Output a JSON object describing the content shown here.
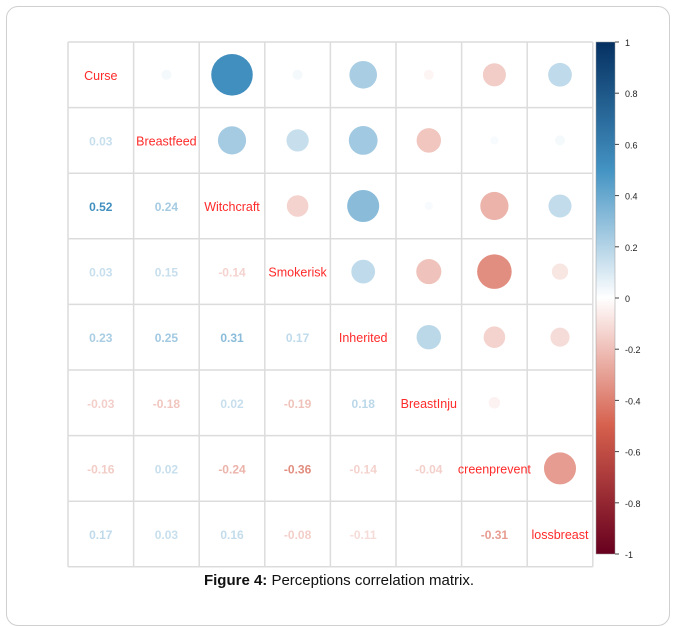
{
  "figure": {
    "caption_label": "Figure 4:",
    "caption_text": " Perceptions correlation matrix."
  },
  "chart_data": {
    "type": "heatmap",
    "variables": [
      "Curse",
      "Breastfeed",
      "Witchcraft",
      "Smokerisk",
      "Inherited",
      "BreastInju",
      "creenprevent",
      "lossbreast"
    ],
    "matrix": [
      [
        1.0,
        0.03,
        0.52,
        0.03,
        0.23,
        -0.03,
        -0.16,
        0.17
      ],
      [
        0.03,
        1.0,
        0.24,
        0.15,
        0.25,
        -0.18,
        0.02,
        0.03
      ],
      [
        0.52,
        0.24,
        1.0,
        -0.14,
        0.31,
        0.02,
        -0.24,
        0.16
      ],
      [
        0.03,
        0.15,
        -0.14,
        1.0,
        0.17,
        -0.19,
        -0.36,
        -0.08
      ],
      [
        0.23,
        0.25,
        0.31,
        0.17,
        1.0,
        0.18,
        -0.14,
        -0.11
      ],
      [
        -0.03,
        -0.18,
        0.02,
        -0.19,
        0.18,
        1.0,
        -0.04,
        0.0
      ],
      [
        -0.16,
        0.02,
        -0.24,
        -0.36,
        -0.14,
        -0.04,
        1.0,
        -0.31
      ],
      [
        0.17,
        0.03,
        0.16,
        -0.08,
        -0.11,
        0.0,
        -0.31,
        1.0
      ]
    ],
    "lower_labels": [
      [
        null,
        null,
        null,
        null,
        null,
        null,
        null
      ],
      [
        "0.03",
        null,
        null,
        null,
        null,
        null,
        null
      ],
      [
        "0.52",
        "0.24",
        null,
        null,
        null,
        null,
        null
      ],
      [
        "0.03",
        "0.15",
        "-0.14",
        null,
        null,
        null,
        null
      ],
      [
        "0.23",
        "0.25",
        "0.31",
        "0.17",
        null,
        null,
        null
      ],
      [
        "-0.03",
        "-0.18",
        "0.02",
        "-0.19",
        "0.18",
        null,
        null
      ],
      [
        "-0.16",
        "0.02",
        "-0.24",
        "-0.36",
        "-0.14",
        "-0.04",
        null
      ],
      [
        "0.17",
        "0.03",
        "0.16",
        "-0.08",
        "-0.11",
        "",
        "-0.31"
      ]
    ],
    "colorbar": {
      "ticks": [
        "1",
        "0.8",
        "0.6",
        "0.4",
        "0.2",
        "0",
        "-0.2",
        "-0.4",
        "-0.6",
        "-0.8",
        "-1"
      ],
      "range": [
        -1,
        1
      ]
    },
    "color_scale": {
      "negative_strong": "#67001f",
      "negative": "#d6604d",
      "neutral": "#ffffff",
      "positive": "#4393c3",
      "positive_strong": "#053061"
    },
    "diagonal_label_color": "#ff2a2a"
  }
}
